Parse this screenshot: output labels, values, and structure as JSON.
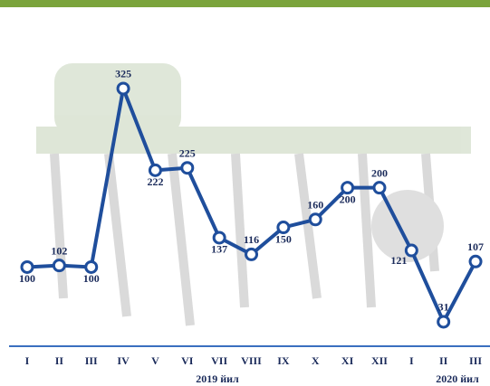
{
  "chart_data": {
    "type": "line",
    "categories": [
      "I",
      "II",
      "III",
      "IV",
      "V",
      "VI",
      "VII",
      "VIII",
      "IX",
      "X",
      "XI",
      "XII",
      "I",
      "II",
      "III"
    ],
    "category_groups": [
      "2019 йил",
      "2020 йил"
    ],
    "values": [
      100,
      102,
      100,
      325,
      222,
      225,
      137,
      116,
      150,
      160,
      200,
      200,
      121,
      31,
      107
    ],
    "color": "#1f4e9c"
  }
}
